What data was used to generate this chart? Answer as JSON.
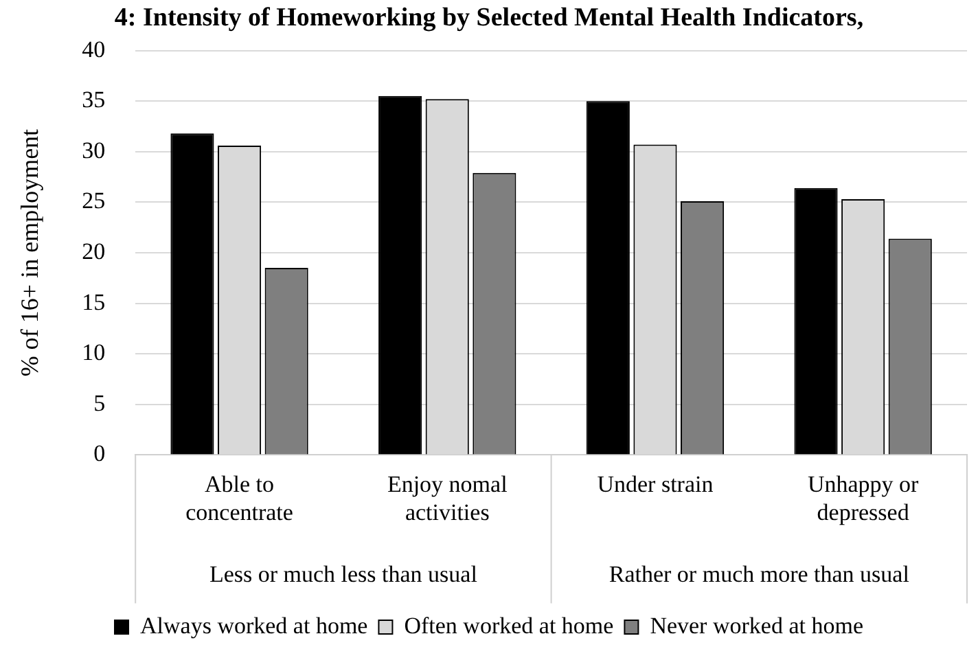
{
  "chart_data": {
    "type": "bar",
    "title": "4: Intensity of Homeworking by Selected Mental Health Indicators,",
    "categories": [
      "Able to concentrate",
      "Enjoy nomal activities",
      "Under strain",
      "Unhappy or depressed"
    ],
    "series": [
      {
        "name": "Always worked at home",
        "color": "#000000",
        "values": [
          31.8,
          35.5,
          35.0,
          26.4
        ]
      },
      {
        "name": "Often worked at home",
        "color": "#d9d9d9",
        "values": [
          30.6,
          35.2,
          30.7,
          25.3
        ]
      },
      {
        "name": "Never worked at home",
        "color": "#7f7f7f",
        "values": [
          18.5,
          27.9,
          25.1,
          21.4
        ]
      }
    ],
    "ylabel": "% of 16+ in employment",
    "ylim": [
      0,
      40
    ],
    "yticks": [
      0,
      5,
      10,
      15,
      20,
      25,
      30,
      35,
      40
    ],
    "annotations": [
      "Less or much less than usual",
      "Rather or much more than usual"
    ],
    "grid": "y",
    "legend": "bottom"
  }
}
